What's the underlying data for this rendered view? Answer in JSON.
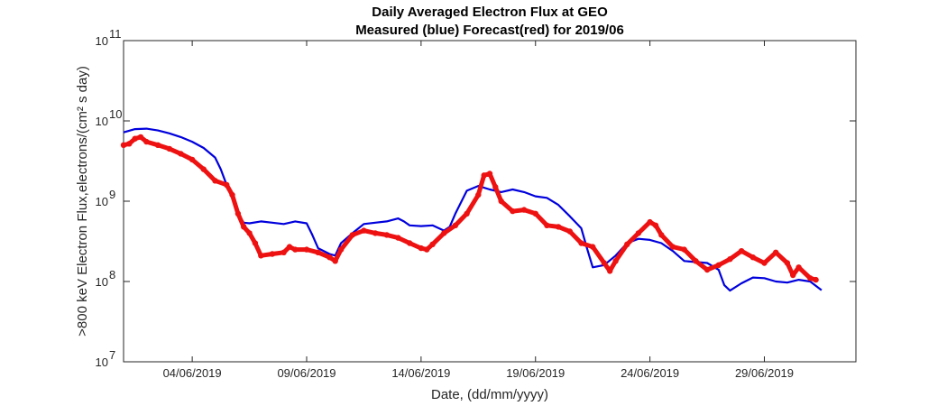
{
  "chart_data": {
    "type": "line",
    "title": "Daily Averaged Electron Flux at GEO",
    "subtitle": "Measured (blue) Forecast(red) for 2019/06",
    "xlabel": "Date, (dd/mm/yyyy)",
    "ylabel": ">800 keV Electron Flux,electrons/(cm² s day)",
    "yscale": "log",
    "ylim": [
      10000000,
      100000000000
    ],
    "xlim": [
      "2019-06-01",
      "2019-07-03"
    ],
    "grid": false,
    "colors": {
      "measured": "#0000dd",
      "forecast": "#ee1111"
    },
    "x_ticks": [
      {
        "date": "2019-06-04",
        "label": "04/06/2019"
      },
      {
        "date": "2019-06-09",
        "label": "09/06/2019"
      },
      {
        "date": "2019-06-14",
        "label": "14/06/2019"
      },
      {
        "date": "2019-06-19",
        "label": "19/06/2019"
      },
      {
        "date": "2019-06-24",
        "label": "24/06/2019"
      },
      {
        "date": "2019-06-29",
        "label": "29/06/2019"
      }
    ],
    "y_ticks": [
      {
        "value": 10000000,
        "base": "10",
        "exp": "7"
      },
      {
        "value": 100000000,
        "base": "10",
        "exp": "8"
      },
      {
        "value": 1000000000,
        "base": "10",
        "exp": "9"
      },
      {
        "value": 10000000000,
        "base": "10",
        "exp": "10"
      },
      {
        "value": 100000000000,
        "base": "10",
        "exp": "11"
      }
    ],
    "series": [
      {
        "key": "measured",
        "style": "line",
        "points": [
          [
            "2019-06-01 00:00",
            7200000000
          ],
          [
            "2019-06-01 12:00",
            7900000000
          ],
          [
            "2019-06-02 00:00",
            8000000000
          ],
          [
            "2019-06-02 12:00",
            7600000000
          ],
          [
            "2019-06-03 00:00",
            7000000000
          ],
          [
            "2019-06-03 12:00",
            6300000000
          ],
          [
            "2019-06-04 00:00",
            5500000000
          ],
          [
            "2019-06-04 12:00",
            4600000000
          ],
          [
            "2019-06-05 00:00",
            3500000000
          ],
          [
            "2019-06-05 06:00",
            2500000000
          ],
          [
            "2019-06-05 12:00",
            1600000000
          ],
          [
            "2019-06-05 18:00",
            1100000000
          ],
          [
            "2019-06-06 00:00",
            700000000
          ],
          [
            "2019-06-06 06:00",
            540000000
          ],
          [
            "2019-06-06 12:00",
            530000000
          ],
          [
            "2019-06-07 00:00",
            560000000
          ],
          [
            "2019-06-07 12:00",
            540000000
          ],
          [
            "2019-06-08 00:00",
            520000000
          ],
          [
            "2019-06-08 12:00",
            560000000
          ],
          [
            "2019-06-09 00:00",
            530000000
          ],
          [
            "2019-06-09 06:00",
            380000000
          ],
          [
            "2019-06-09 12:00",
            260000000
          ],
          [
            "2019-06-10 00:00",
            220000000
          ],
          [
            "2019-06-10 06:00",
            210000000
          ],
          [
            "2019-06-10 12:00",
            300000000
          ],
          [
            "2019-06-11 00:00",
            400000000
          ],
          [
            "2019-06-11 12:00",
            520000000
          ],
          [
            "2019-06-12 00:00",
            540000000
          ],
          [
            "2019-06-12 12:00",
            560000000
          ],
          [
            "2019-06-13 00:00",
            610000000
          ],
          [
            "2019-06-13 06:00",
            560000000
          ],
          [
            "2019-06-13 12:00",
            500000000
          ],
          [
            "2019-06-14 00:00",
            490000000
          ],
          [
            "2019-06-14 12:00",
            500000000
          ],
          [
            "2019-06-15 00:00",
            430000000
          ],
          [
            "2019-06-15 06:00",
            480000000
          ],
          [
            "2019-06-15 12:00",
            700000000
          ],
          [
            "2019-06-16 00:00",
            1350000000
          ],
          [
            "2019-06-16 12:00",
            1550000000
          ],
          [
            "2019-06-17 00:00",
            1400000000
          ],
          [
            "2019-06-17 12:00",
            1300000000
          ],
          [
            "2019-06-18 00:00",
            1400000000
          ],
          [
            "2019-06-18 12:00",
            1300000000
          ],
          [
            "2019-06-19 00:00",
            1150000000
          ],
          [
            "2019-06-19 12:00",
            1100000000
          ],
          [
            "2019-06-20 00:00",
            900000000
          ],
          [
            "2019-06-20 12:00",
            650000000
          ],
          [
            "2019-06-21 00:00",
            460000000
          ],
          [
            "2019-06-21 06:00",
            260000000
          ],
          [
            "2019-06-21 12:00",
            150000000
          ],
          [
            "2019-06-22 00:00",
            160000000
          ],
          [
            "2019-06-22 12:00",
            210000000
          ],
          [
            "2019-06-23 00:00",
            300000000
          ],
          [
            "2019-06-23 12:00",
            340000000
          ],
          [
            "2019-06-24 00:00",
            330000000
          ],
          [
            "2019-06-24 12:00",
            300000000
          ],
          [
            "2019-06-25 00:00",
            240000000
          ],
          [
            "2019-06-25 12:00",
            180000000
          ],
          [
            "2019-06-26 00:00",
            175000000
          ],
          [
            "2019-06-26 12:00",
            170000000
          ],
          [
            "2019-06-27 00:00",
            140000000
          ],
          [
            "2019-06-27 06:00",
            90000000
          ],
          [
            "2019-06-27 12:00",
            77000000
          ],
          [
            "2019-06-28 00:00",
            95000000
          ],
          [
            "2019-06-28 12:00",
            112000000
          ],
          [
            "2019-06-29 00:00",
            110000000
          ],
          [
            "2019-06-29 12:00",
            100000000
          ],
          [
            "2019-06-30 00:00",
            97000000
          ],
          [
            "2019-06-30 12:00",
            105000000
          ],
          [
            "2019-07-01 00:00",
            100000000
          ],
          [
            "2019-07-01 12:00",
            78000000
          ]
        ]
      },
      {
        "key": "forecast",
        "style": "dots",
        "points": [
          [
            "2019-06-01 00:00",
            5000000000
          ],
          [
            "2019-06-01 06:00",
            5200000000
          ],
          [
            "2019-06-01 12:00",
            6000000000
          ],
          [
            "2019-06-01 18:00",
            6300000000
          ],
          [
            "2019-06-02 00:00",
            5500000000
          ],
          [
            "2019-06-02 12:00",
            5000000000
          ],
          [
            "2019-06-03 00:00",
            4500000000
          ],
          [
            "2019-06-03 12:00",
            3900000000
          ],
          [
            "2019-06-04 00:00",
            3300000000
          ],
          [
            "2019-06-04 12:00",
            2500000000
          ],
          [
            "2019-06-05 00:00",
            1800000000
          ],
          [
            "2019-06-05 12:00",
            1600000000
          ],
          [
            "2019-06-05 18:00",
            1200000000
          ],
          [
            "2019-06-06 00:00",
            700000000
          ],
          [
            "2019-06-06 06:00",
            480000000
          ],
          [
            "2019-06-06 12:00",
            400000000
          ],
          [
            "2019-06-06 18:00",
            300000000
          ],
          [
            "2019-06-07 00:00",
            210000000
          ],
          [
            "2019-06-07 12:00",
            220000000
          ],
          [
            "2019-06-08 00:00",
            230000000
          ],
          [
            "2019-06-08 06:00",
            270000000
          ],
          [
            "2019-06-08 12:00",
            250000000
          ],
          [
            "2019-06-09 00:00",
            250000000
          ],
          [
            "2019-06-09 12:00",
            230000000
          ],
          [
            "2019-06-10 00:00",
            200000000
          ],
          [
            "2019-06-10 06:00",
            180000000
          ],
          [
            "2019-06-10 12:00",
            250000000
          ],
          [
            "2019-06-11 00:00",
            380000000
          ],
          [
            "2019-06-11 12:00",
            430000000
          ],
          [
            "2019-06-12 00:00",
            400000000
          ],
          [
            "2019-06-12 12:00",
            380000000
          ],
          [
            "2019-06-13 00:00",
            350000000
          ],
          [
            "2019-06-13 12:00",
            300000000
          ],
          [
            "2019-06-14 00:00",
            260000000
          ],
          [
            "2019-06-14 06:00",
            250000000
          ],
          [
            "2019-06-14 12:00",
            290000000
          ],
          [
            "2019-06-15 00:00",
            400000000
          ],
          [
            "2019-06-15 12:00",
            500000000
          ],
          [
            "2019-06-16 00:00",
            700000000
          ],
          [
            "2019-06-16 12:00",
            1200000000
          ],
          [
            "2019-06-16 18:00",
            2100000000
          ],
          [
            "2019-06-17 00:00",
            2200000000
          ],
          [
            "2019-06-17 06:00",
            1500000000
          ],
          [
            "2019-06-17 12:00",
            1000000000
          ],
          [
            "2019-06-18 00:00",
            750000000
          ],
          [
            "2019-06-18 12:00",
            780000000
          ],
          [
            "2019-06-19 00:00",
            700000000
          ],
          [
            "2019-06-19 12:00",
            500000000
          ],
          [
            "2019-06-20 00:00",
            480000000
          ],
          [
            "2019-06-20 12:00",
            420000000
          ],
          [
            "2019-06-21 00:00",
            300000000
          ],
          [
            "2019-06-21 12:00",
            270000000
          ],
          [
            "2019-06-22 00:00",
            170000000
          ],
          [
            "2019-06-22 06:00",
            135000000
          ],
          [
            "2019-06-22 12:00",
            180000000
          ],
          [
            "2019-06-23 00:00",
            290000000
          ],
          [
            "2019-06-23 12:00",
            400000000
          ],
          [
            "2019-06-24 00:00",
            550000000
          ],
          [
            "2019-06-24 06:00",
            500000000
          ],
          [
            "2019-06-24 12:00",
            380000000
          ],
          [
            "2019-06-25 00:00",
            270000000
          ],
          [
            "2019-06-25 12:00",
            250000000
          ],
          [
            "2019-06-26 00:00",
            180000000
          ],
          [
            "2019-06-26 12:00",
            140000000
          ],
          [
            "2019-06-27 00:00",
            160000000
          ],
          [
            "2019-06-27 12:00",
            190000000
          ],
          [
            "2019-06-28 00:00",
            240000000
          ],
          [
            "2019-06-28 12:00",
            200000000
          ],
          [
            "2019-06-29 00:00",
            170000000
          ],
          [
            "2019-06-29 12:00",
            230000000
          ],
          [
            "2019-06-30 00:00",
            170000000
          ],
          [
            "2019-06-30 06:00",
            120000000
          ],
          [
            "2019-06-30 12:00",
            150000000
          ],
          [
            "2019-07-01 00:00",
            110000000
          ],
          [
            "2019-07-01 06:00",
            105000000
          ]
        ]
      }
    ]
  }
}
